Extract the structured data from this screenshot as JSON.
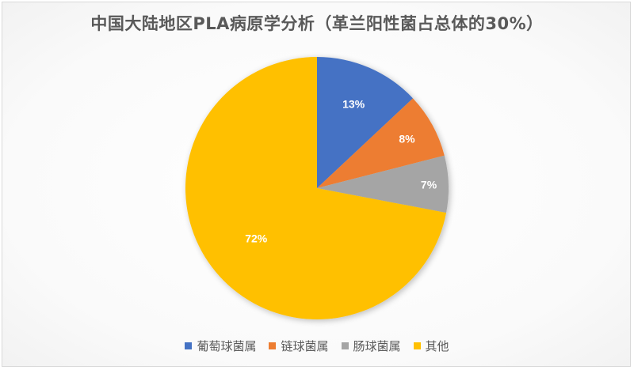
{
  "chart_data": {
    "type": "pie",
    "title": "中国大陆地区PLA病原学分析（革兰阳性菌占总体的30%）",
    "categories": [
      "葡萄球菌属",
      "链球菌属",
      "肠球菌属",
      "其他"
    ],
    "values": [
      13,
      8,
      7,
      72
    ],
    "labels": [
      "13%",
      "8%",
      "7%",
      "72%"
    ],
    "colors": [
      "#4472c4",
      "#ed7d31",
      "#a5a5a5",
      "#ffc000"
    ],
    "start_angle": "12 o'clock, clockwise",
    "legend_position": "bottom",
    "data_labels": "percentage, inside"
  },
  "legend": {
    "items": [
      {
        "label": "葡萄球菌属",
        "color": "#4472c4"
      },
      {
        "label": "链球菌属",
        "color": "#ed7d31"
      },
      {
        "label": "肠球菌属",
        "color": "#a5a5a5"
      },
      {
        "label": "其他",
        "color": "#ffc000"
      }
    ]
  }
}
